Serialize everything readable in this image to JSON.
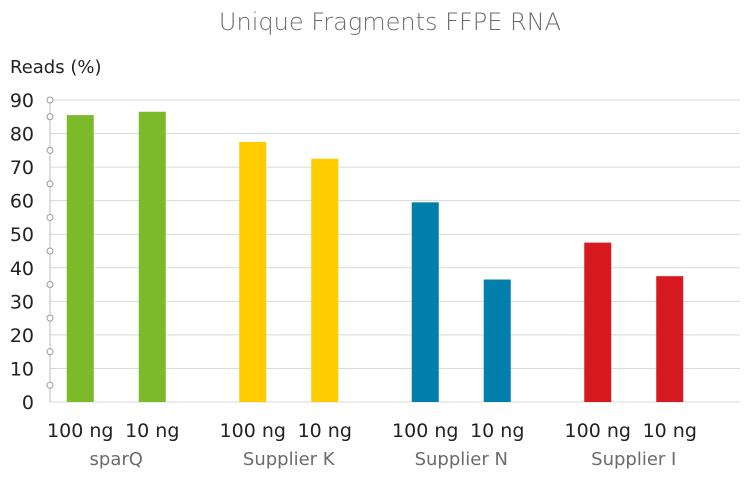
{
  "chart_data": {
    "type": "bar",
    "title": "Unique Fragments FFPE RNA",
    "ylabel": "Reads (%)",
    "xlabel": "",
    "ylim": [
      0,
      90
    ],
    "yticks": [
      "0",
      "10",
      "20",
      "30",
      "40",
      "50",
      "60",
      "70",
      "80",
      "90"
    ],
    "grid": true,
    "legend": "none",
    "groups": [
      {
        "name": "sparQ",
        "color": "#7dba2a",
        "bars": [
          {
            "label": "100 ng",
            "value": 85.5
          },
          {
            "label": "10 ng",
            "value": 86.5
          }
        ]
      },
      {
        "name": "Supplier K",
        "color": "#ffcc00",
        "bars": [
          {
            "label": "100 ng",
            "value": 77.5
          },
          {
            "label": "10 ng",
            "value": 72.5
          }
        ]
      },
      {
        "name": "Supplier N",
        "color": "#007fac",
        "bars": [
          {
            "label": "100 ng",
            "value": 59.5
          },
          {
            "label": "10 ng",
            "value": 36.5
          }
        ]
      },
      {
        "name": "Supplier I",
        "color": "#d71920",
        "bars": [
          {
            "label": "100 ng",
            "value": 47.5
          },
          {
            "label": "10 ng",
            "value": 37.5
          }
        ]
      }
    ]
  }
}
